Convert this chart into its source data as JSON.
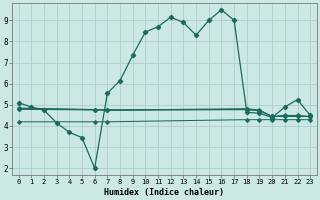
{
  "xlabel": "Humidex (Indice chaleur)",
  "xlim": [
    -0.5,
    23.5
  ],
  "ylim": [
    1.7,
    9.8
  ],
  "yticks": [
    2,
    3,
    4,
    5,
    6,
    7,
    8,
    9
  ],
  "xticks": [
    0,
    1,
    2,
    3,
    4,
    5,
    6,
    7,
    8,
    9,
    10,
    11,
    12,
    13,
    14,
    15,
    16,
    17,
    18,
    19,
    20,
    21,
    22,
    23
  ],
  "bg_color": "#cce8e5",
  "grid_color": "#b0cccb",
  "line_color": "#1a6b5e",
  "main_curve": [
    [
      0,
      5.1
    ],
    [
      1,
      4.9
    ],
    [
      2,
      4.75
    ],
    [
      3,
      4.15
    ],
    [
      4,
      3.7
    ],
    [
      5,
      3.45
    ],
    [
      6,
      2.0
    ],
    [
      7,
      5.55
    ],
    [
      8,
      6.15
    ],
    [
      9,
      7.35
    ],
    [
      10,
      8.45
    ],
    [
      11,
      8.7
    ],
    [
      12,
      9.15
    ],
    [
      13,
      8.9
    ],
    [
      14,
      8.3
    ],
    [
      15,
      9.0
    ],
    [
      16,
      9.5
    ],
    [
      17,
      9.0
    ],
    [
      18,
      4.65
    ],
    [
      19,
      4.6
    ],
    [
      20,
      4.4
    ],
    [
      21,
      4.9
    ],
    [
      22,
      5.25
    ],
    [
      23,
      4.5
    ]
  ],
  "flat_line1": [
    [
      0,
      4.85
    ],
    [
      6,
      4.78
    ],
    [
      7,
      4.77
    ],
    [
      18,
      4.77
    ],
    [
      19,
      4.72
    ],
    [
      20,
      4.45
    ],
    [
      21,
      4.45
    ],
    [
      22,
      4.45
    ],
    [
      23,
      4.45
    ]
  ],
  "flat_line2": [
    [
      0,
      4.82
    ],
    [
      6,
      4.77
    ],
    [
      7,
      4.75
    ],
    [
      18,
      4.82
    ],
    [
      19,
      4.76
    ],
    [
      20,
      4.45
    ],
    [
      21,
      4.5
    ],
    [
      22,
      4.5
    ],
    [
      23,
      4.45
    ]
  ],
  "flat_line3": [
    [
      0,
      4.79
    ],
    [
      6,
      4.76
    ],
    [
      7,
      4.74
    ],
    [
      18,
      4.79
    ],
    [
      19,
      4.73
    ],
    [
      20,
      4.45
    ],
    [
      21,
      4.48
    ],
    [
      22,
      4.48
    ],
    [
      23,
      4.44
    ]
  ],
  "flat_line4": [
    [
      0,
      4.2
    ],
    [
      6,
      4.2
    ],
    [
      7,
      4.2
    ],
    [
      18,
      4.3
    ],
    [
      19,
      4.3
    ],
    [
      20,
      4.3
    ],
    [
      21,
      4.3
    ],
    [
      22,
      4.3
    ],
    [
      23,
      4.3
    ]
  ]
}
